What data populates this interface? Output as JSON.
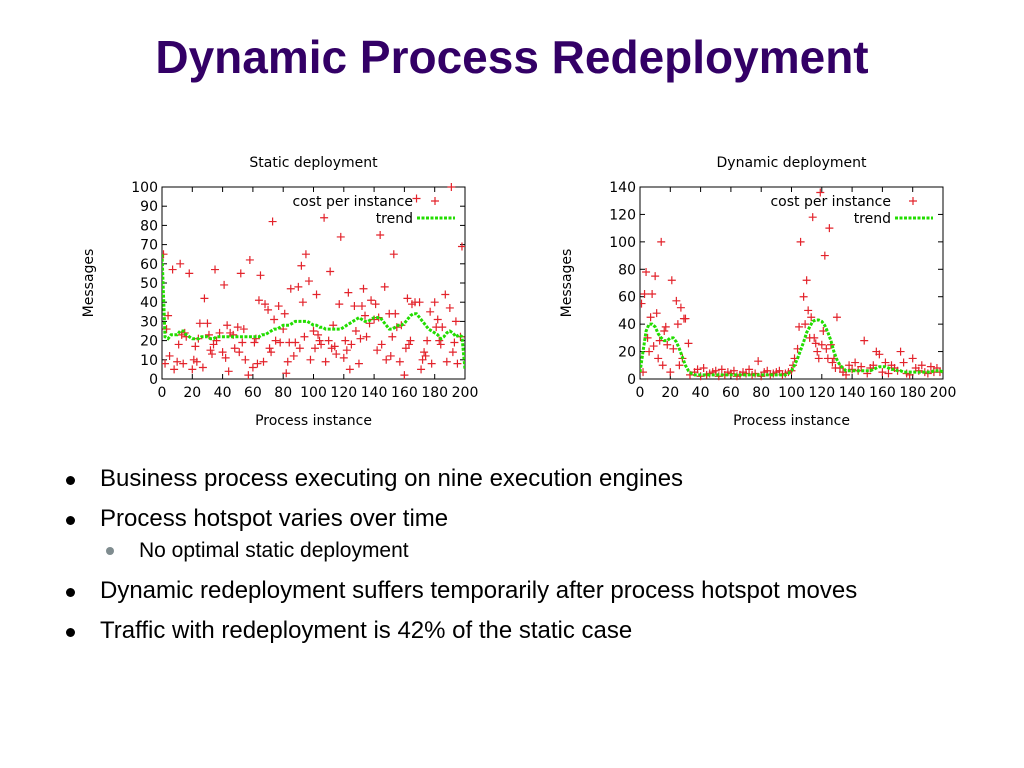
{
  "slide": {
    "title": "Dynamic Process Redeployment"
  },
  "colors": {
    "title": "#330066",
    "point": "#e3232b",
    "trend": "#22dd00",
    "sub_bullet": "#7f8c8f"
  },
  "bullets": [
    {
      "level": 1,
      "text": "Business process executing on nine execution engines"
    },
    {
      "level": 1,
      "text": "Process hotspot varies over time"
    },
    {
      "level": 2,
      "text": "No optimal static deployment"
    },
    {
      "level": 1,
      "text": "Dynamic redeployment suffers temporarily after process hotspot moves"
    },
    {
      "level": 1,
      "text": "Traffic with redeployment is 42% of the static case"
    }
  ],
  "chart_data": [
    {
      "type": "scatter",
      "title": "Static deployment",
      "xlabel": "Process instance",
      "ylabel": "Messages",
      "xlim": [
        0,
        200
      ],
      "ylim": [
        0,
        100
      ],
      "xticks": [
        0,
        20,
        40,
        60,
        80,
        100,
        120,
        140,
        160,
        180,
        200
      ],
      "yticks": [
        0,
        10,
        20,
        30,
        40,
        50,
        60,
        70,
        80,
        90,
        100
      ],
      "grid": false,
      "legend": "top-right",
      "series": [
        {
          "name": "cost per instance",
          "marker": "+",
          "x": [
            1,
            2,
            3,
            4,
            5,
            7,
            8,
            10,
            11,
            12,
            13,
            14,
            15,
            16,
            18,
            20,
            21,
            22,
            23,
            24,
            25,
            27,
            28,
            30,
            31,
            32,
            33,
            34,
            35,
            36,
            38,
            40,
            41,
            42,
            43,
            44,
            45,
            47,
            48,
            50,
            51,
            52,
            53,
            54,
            55,
            57,
            58,
            60,
            61,
            62,
            63,
            64,
            65,
            67,
            68,
            70,
            71,
            72,
            73,
            74,
            75,
            77,
            78,
            80,
            81,
            82,
            83,
            84,
            85,
            87,
            88,
            90,
            91,
            92,
            93,
            94,
            95,
            97,
            98,
            100,
            101,
            102,
            103,
            104,
            105,
            107,
            108,
            110,
            111,
            112,
            113,
            114,
            115,
            117,
            118,
            120,
            121,
            122,
            123,
            124,
            125,
            127,
            128,
            130,
            131,
            132,
            133,
            134,
            135,
            137,
            138,
            140,
            141,
            142,
            143,
            144,
            145,
            147,
            148,
            150,
            151,
            152,
            153,
            154,
            155,
            157,
            158,
            160,
            161,
            162,
            163,
            164,
            165,
            167,
            168,
            170,
            171,
            172,
            173,
            174,
            175,
            177,
            178,
            180,
            181,
            182,
            183,
            184,
            185,
            187,
            188,
            190,
            191,
            192,
            193,
            194,
            195,
            197,
            198
          ],
          "y": [
            65,
            8,
            26,
            33,
            12,
            57,
            5,
            9,
            18,
            60,
            23,
            8,
            24,
            22,
            55,
            5,
            10,
            17,
            9,
            21,
            29,
            6,
            42,
            29,
            23,
            15,
            13,
            18,
            57,
            20,
            24,
            14,
            49,
            11,
            28,
            4,
            24,
            23,
            16,
            27,
            14,
            55,
            19,
            26,
            10,
            2,
            62,
            6,
            19,
            21,
            8,
            41,
            54,
            9,
            39,
            36,
            16,
            14,
            82,
            31,
            20,
            38,
            19,
            26,
            34,
            3,
            9,
            19,
            47,
            12,
            19,
            48,
            16,
            59,
            40,
            22,
            65,
            51,
            10,
            25,
            16,
            44,
            23,
            20,
            18,
            84,
            9,
            20,
            56,
            16,
            28,
            17,
            13,
            39,
            74,
            11,
            20,
            15,
            45,
            5,
            18,
            38,
            25,
            8,
            21,
            38,
            47,
            33,
            22,
            29,
            41,
            31,
            39,
            15,
            32,
            75,
            18,
            48,
            10,
            34,
            12,
            22,
            65,
            34,
            27,
            9,
            28,
            2,
            16,
            42,
            18,
            20,
            39,
            40,
            94,
            40,
            5,
            10,
            14,
            12,
            20,
            35,
            8,
            40,
            27,
            31,
            20,
            18,
            27,
            44,
            9,
            37,
            100,
            14,
            19,
            30,
            8,
            22,
            69
          ]
        },
        {
          "name": "trend",
          "style": "dashed",
          "x": [
            0,
            2,
            4,
            6,
            8,
            10,
            12,
            14,
            16,
            18,
            20,
            22,
            24,
            26,
            28,
            30,
            32,
            34,
            36,
            38,
            40,
            42,
            44,
            46,
            48,
            50,
            52,
            54,
            56,
            58,
            60,
            62,
            64,
            66,
            68,
            70,
            72,
            74,
            76,
            78,
            80,
            82,
            84,
            86,
            88,
            90,
            92,
            94,
            96,
            98,
            100,
            102,
            104,
            106,
            108,
            110,
            112,
            114,
            116,
            118,
            120,
            122,
            124,
            126,
            128,
            130,
            132,
            134,
            136,
            138,
            140,
            142,
            144,
            146,
            148,
            150,
            152,
            154,
            156,
            158,
            160,
            162,
            164,
            166,
            168,
            170,
            172,
            174,
            176,
            178,
            180,
            182,
            184,
            186,
            188,
            190,
            192,
            194,
            196,
            198,
            200
          ],
          "y": [
            65,
            22,
            21,
            23,
            23,
            23,
            25,
            25,
            23,
            22,
            21,
            21,
            21,
            22,
            22,
            22,
            21,
            21,
            22,
            22,
            22,
            22,
            22,
            22,
            22,
            22,
            22,
            22,
            22,
            22,
            22,
            22,
            22,
            23,
            23,
            24,
            25,
            26,
            26,
            27,
            28,
            28,
            28,
            29,
            30,
            30,
            30,
            30,
            30,
            29,
            28,
            28,
            27,
            27,
            26,
            26,
            26,
            26,
            26,
            26,
            27,
            28,
            29,
            30,
            31,
            32,
            31,
            30,
            30,
            31,
            32,
            32,
            32,
            30,
            28,
            26,
            26,
            27,
            28,
            28,
            29,
            31,
            33,
            34,
            34,
            32,
            30,
            28,
            26,
            25,
            24,
            23,
            21,
            22,
            24,
            25,
            24,
            22,
            23,
            22,
            5
          ]
        }
      ]
    },
    {
      "type": "scatter",
      "title": "Dynamic deployment",
      "xlabel": "Process instance",
      "ylabel": "Messages",
      "xlim": [
        0,
        200
      ],
      "ylim": [
        0,
        140
      ],
      "xticks": [
        0,
        20,
        40,
        60,
        80,
        100,
        120,
        140,
        160,
        180,
        200
      ],
      "yticks": [
        0,
        20,
        40,
        60,
        80,
        100,
        120,
        140
      ],
      "grid": false,
      "legend": "top-right",
      "series": [
        {
          "name": "cost per instance",
          "marker": "+",
          "x": [
            1,
            2,
            3,
            4,
            5,
            6,
            7,
            8,
            9,
            10,
            11,
            12,
            13,
            14,
            15,
            16,
            17,
            18,
            20,
            21,
            22,
            24,
            25,
            26,
            27,
            28,
            29,
            30,
            32,
            33,
            36,
            38,
            40,
            42,
            44,
            46,
            48,
            50,
            52,
            54,
            56,
            58,
            60,
            62,
            64,
            66,
            68,
            70,
            72,
            74,
            76,
            78,
            80,
            82,
            84,
            86,
            88,
            90,
            92,
            94,
            96,
            98,
            100,
            101,
            102,
            104,
            105,
            106,
            108,
            109,
            110,
            111,
            112,
            113,
            114,
            115,
            116,
            117,
            118,
            119,
            120,
            121,
            122,
            123,
            124,
            125,
            126,
            127,
            128,
            129,
            130,
            132,
            134,
            136,
            138,
            140,
            142,
            144,
            146,
            148,
            150,
            152,
            154,
            156,
            158,
            160,
            162,
            164,
            166,
            168,
            170,
            172,
            174,
            176,
            178,
            180,
            182,
            184,
            186,
            188,
            190,
            192,
            194,
            196,
            198
          ],
          "y": [
            55,
            5,
            62,
            78,
            30,
            20,
            45,
            62,
            24,
            75,
            48,
            15,
            28,
            100,
            10,
            35,
            38,
            25,
            5,
            72,
            22,
            57,
            40,
            10,
            52,
            15,
            44,
            44,
            26,
            3,
            5,
            7,
            2,
            8,
            3,
            4,
            5,
            6,
            2,
            7,
            3,
            5,
            4,
            6,
            2,
            3,
            5,
            4,
            7,
            3,
            4,
            13,
            2,
            5,
            6,
            3,
            4,
            5,
            6,
            3,
            4,
            5,
            6,
            10,
            15,
            22,
            38,
            100,
            60,
            40,
            72,
            50,
            30,
            45,
            118,
            30,
            26,
            20,
            15,
            136,
            25,
            35,
            90,
            22,
            15,
            110,
            25,
            12,
            15,
            8,
            45,
            8,
            5,
            3,
            10,
            7,
            12,
            6,
            9,
            28,
            4,
            8,
            10,
            20,
            18,
            5,
            12,
            4,
            10,
            8,
            6,
            20,
            12,
            4,
            3,
            15,
            8,
            6,
            10,
            5,
            4,
            9,
            5,
            8,
            5
          ],
          "x_extra": [],
          "y_extra": []
        },
        {
          "name": "trend",
          "style": "dashed",
          "x": [
            0,
            2,
            4,
            6,
            8,
            10,
            12,
            14,
            16,
            18,
            20,
            22,
            24,
            26,
            28,
            30,
            32,
            34,
            36,
            38,
            40,
            42,
            44,
            46,
            48,
            50,
            52,
            54,
            56,
            58,
            60,
            62,
            64,
            66,
            68,
            70,
            72,
            74,
            76,
            78,
            80,
            82,
            84,
            86,
            88,
            90,
            92,
            94,
            96,
            98,
            100,
            102,
            104,
            106,
            108,
            110,
            112,
            114,
            116,
            118,
            120,
            122,
            124,
            126,
            128,
            130,
            132,
            134,
            136,
            138,
            140,
            142,
            144,
            146,
            148,
            150,
            152,
            154,
            156,
            158,
            160,
            162,
            164,
            166,
            168,
            170,
            172,
            174,
            176,
            178,
            180,
            182,
            184,
            186,
            188,
            190,
            192,
            194,
            196,
            198,
            200
          ],
          "y": [
            5,
            20,
            35,
            40,
            40,
            38,
            33,
            30,
            28,
            28,
            30,
            30,
            27,
            22,
            16,
            10,
            6,
            4,
            3,
            3,
            3,
            3,
            3,
            3,
            3,
            3,
            3,
            3,
            3,
            3,
            3,
            3,
            3,
            3,
            3,
            3,
            3,
            3,
            3,
            3,
            3,
            3,
            3,
            3,
            3,
            3,
            3,
            3,
            3,
            4,
            6,
            10,
            15,
            21,
            27,
            34,
            38,
            42,
            43,
            43,
            42,
            39,
            34,
            28,
            20,
            14,
            10,
            8,
            6,
            6,
            6,
            6,
            6,
            6,
            6,
            6,
            6,
            7,
            8,
            9,
            9,
            9,
            8,
            7,
            7,
            6,
            6,
            5,
            5,
            5,
            5,
            5,
            5,
            5,
            5,
            5,
            5,
            6,
            6,
            6,
            5
          ]
        }
      ]
    }
  ]
}
